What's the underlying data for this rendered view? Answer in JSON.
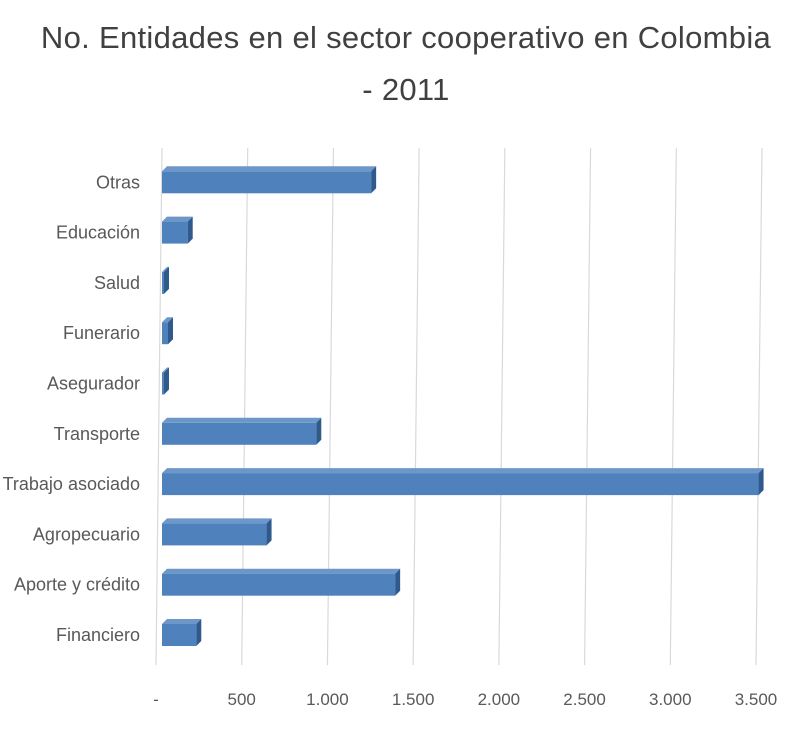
{
  "chart_data": {
    "type": "bar",
    "orientation": "horizontal",
    "title": "No. Entidades en el sector cooperativo en Colombia - 2011",
    "xlabel": "",
    "ylabel": "",
    "categories": [
      "Financiero",
      "Aporte y crédito",
      "Agropecuario",
      "Trabajo asociado",
      "Transporte",
      "Asegurador",
      "Funerario",
      "Salud",
      "Educación",
      "Otras"
    ],
    "values": [
      200,
      1360,
      610,
      3480,
      900,
      5,
      35,
      10,
      150,
      1220
    ],
    "xlim": [
      0,
      3500
    ],
    "x_ticks": [
      0,
      500,
      1000,
      1500,
      2000,
      2500,
      3000,
      3500
    ],
    "x_tick_labels": [
      "-",
      "500",
      "1.000",
      "1.500",
      "2.000",
      "2.500",
      "3.000",
      "3.500"
    ],
    "grid": "vertical",
    "legend": "none",
    "bar_color": "#4f81bd",
    "bar_top_color": "#6d97c9",
    "bar_side_color": "#2f5a8c",
    "grid_color": "#d9d9d9"
  }
}
